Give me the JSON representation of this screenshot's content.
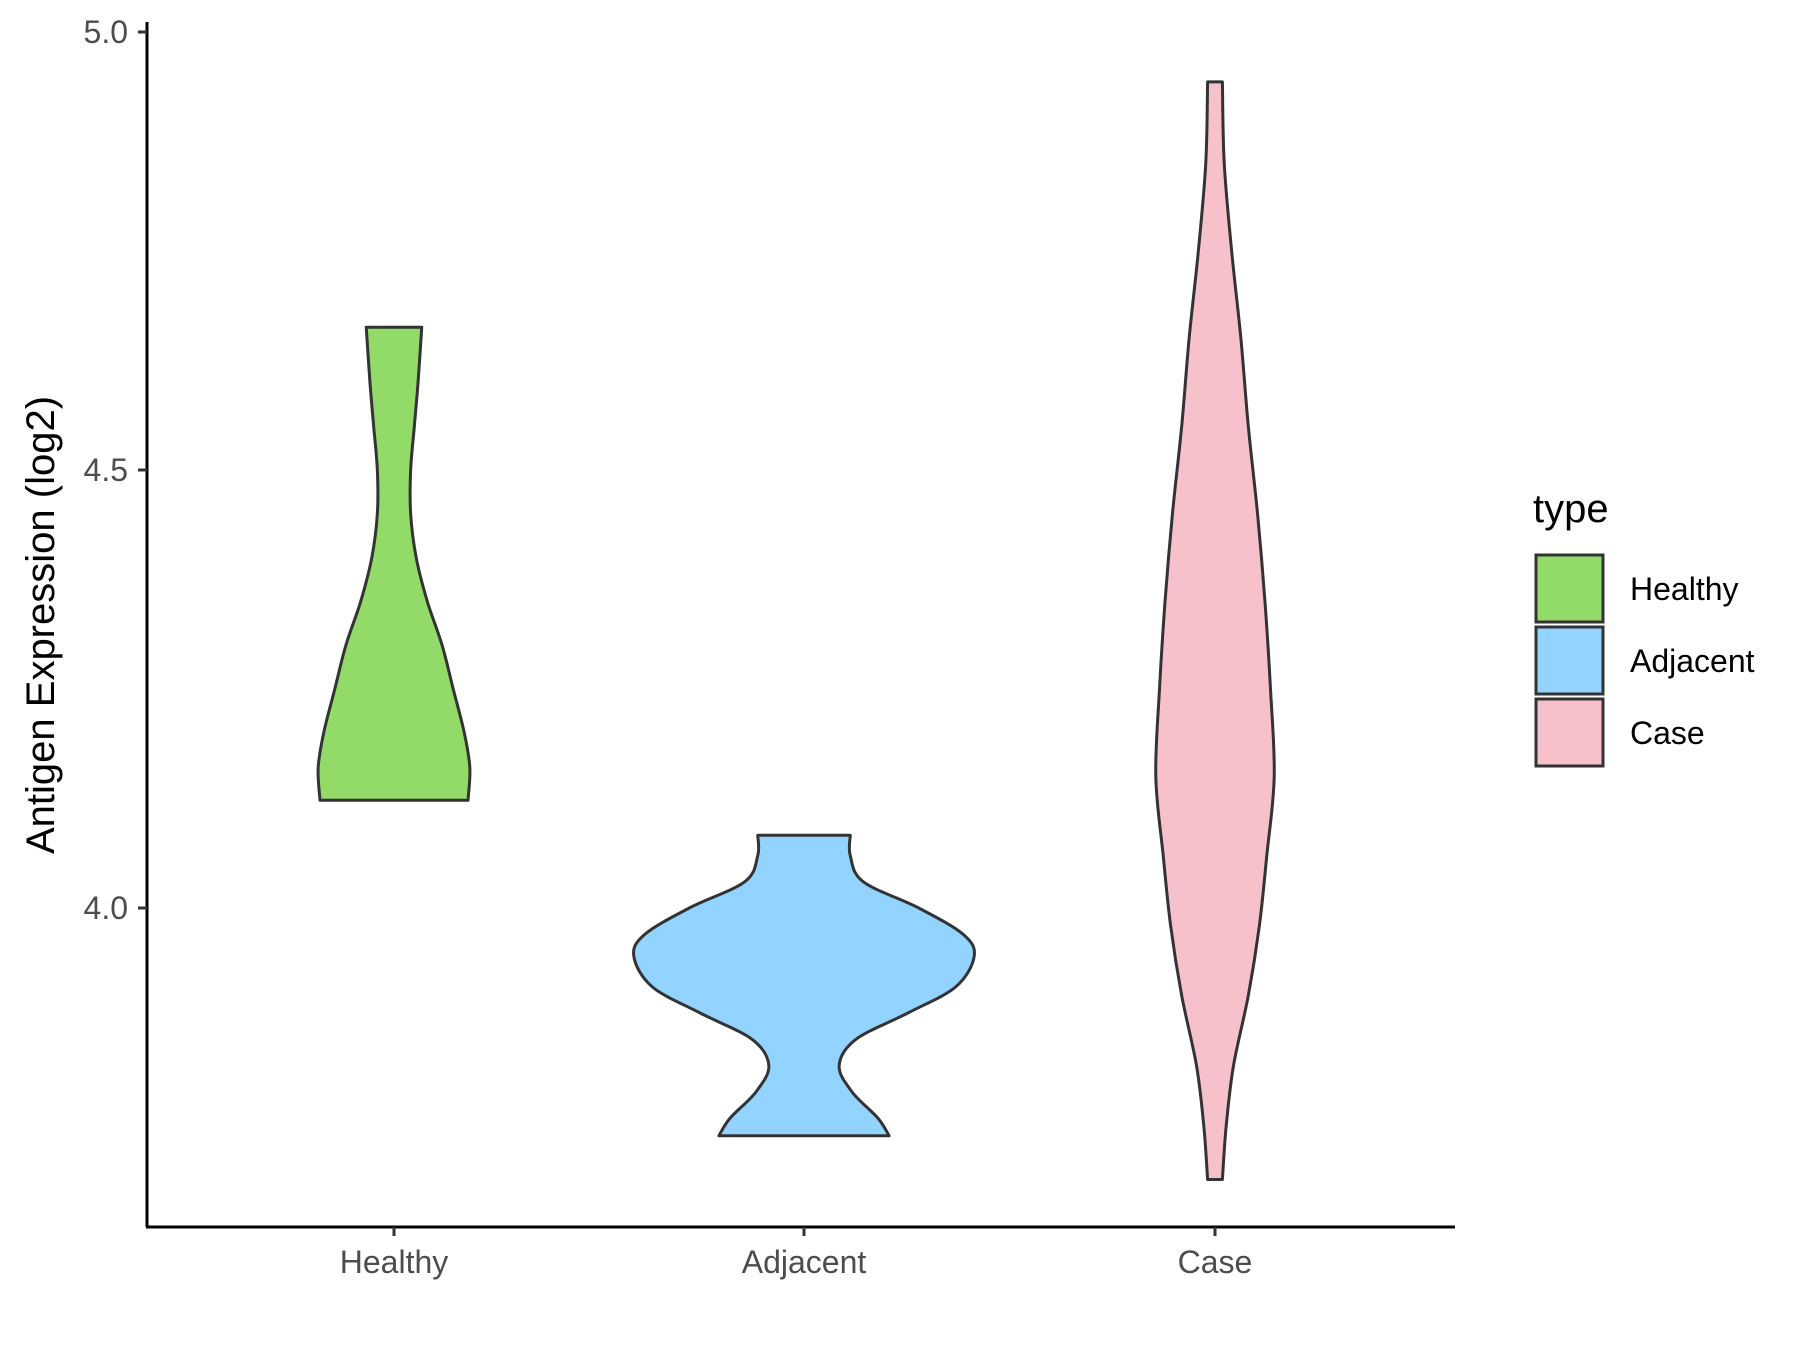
{
  "chart_data": {
    "type": "violin",
    "title": "",
    "xlabel": "",
    "ylabel": "Antigen Expression (log2)",
    "categories": [
      "Healthy",
      "Adjacent",
      "Case"
    ],
    "y_ticks": [
      "4.0",
      "4.5",
      "5.0"
    ],
    "ylim": [
      3.63,
      5.0
    ],
    "grid": false,
    "legend": {
      "title": "type",
      "position": "right",
      "entries": [
        "Healthy",
        "Adjacent",
        "Case"
      ]
    },
    "colors": {
      "Healthy": "#93DB69",
      "Adjacent": "#92D3FF",
      "Case": "#F7C1CC",
      "outline": "#333333"
    },
    "series": [
      {
        "category": "Healthy",
        "min": 4.123,
        "max": 4.663,
        "density": [
          [
            4.123,
            0.4
          ],
          [
            4.16,
            0.41
          ],
          [
            4.2,
            0.38
          ],
          [
            4.25,
            0.32
          ],
          [
            4.3,
            0.26
          ],
          [
            4.35,
            0.18
          ],
          [
            4.4,
            0.12
          ],
          [
            4.45,
            0.09
          ],
          [
            4.5,
            0.09
          ],
          [
            4.55,
            0.11
          ],
          [
            4.6,
            0.13
          ],
          [
            4.663,
            0.15
          ]
        ]
      },
      {
        "category": "Adjacent",
        "min": 3.74,
        "max": 4.083,
        "density": [
          [
            3.74,
            0.46
          ],
          [
            3.76,
            0.4
          ],
          [
            3.79,
            0.26
          ],
          [
            3.82,
            0.19
          ],
          [
            3.85,
            0.28
          ],
          [
            3.88,
            0.56
          ],
          [
            3.91,
            0.82
          ],
          [
            3.945,
            0.92
          ],
          [
            3.97,
            0.86
          ],
          [
            4.0,
            0.62
          ],
          [
            4.03,
            0.32
          ],
          [
            4.06,
            0.25
          ],
          [
            4.083,
            0.25
          ]
        ]
      },
      {
        "category": "Case",
        "min": 3.69,
        "max": 4.943,
        "density": [
          [
            3.69,
            0.04
          ],
          [
            3.75,
            0.06
          ],
          [
            3.82,
            0.1
          ],
          [
            3.9,
            0.18
          ],
          [
            3.98,
            0.24
          ],
          [
            4.06,
            0.28
          ],
          [
            4.15,
            0.32
          ],
          [
            4.25,
            0.3
          ],
          [
            4.35,
            0.27
          ],
          [
            4.45,
            0.23
          ],
          [
            4.55,
            0.18
          ],
          [
            4.65,
            0.14
          ],
          [
            4.75,
            0.09
          ],
          [
            4.85,
            0.05
          ],
          [
            4.943,
            0.04
          ]
        ]
      }
    ]
  }
}
